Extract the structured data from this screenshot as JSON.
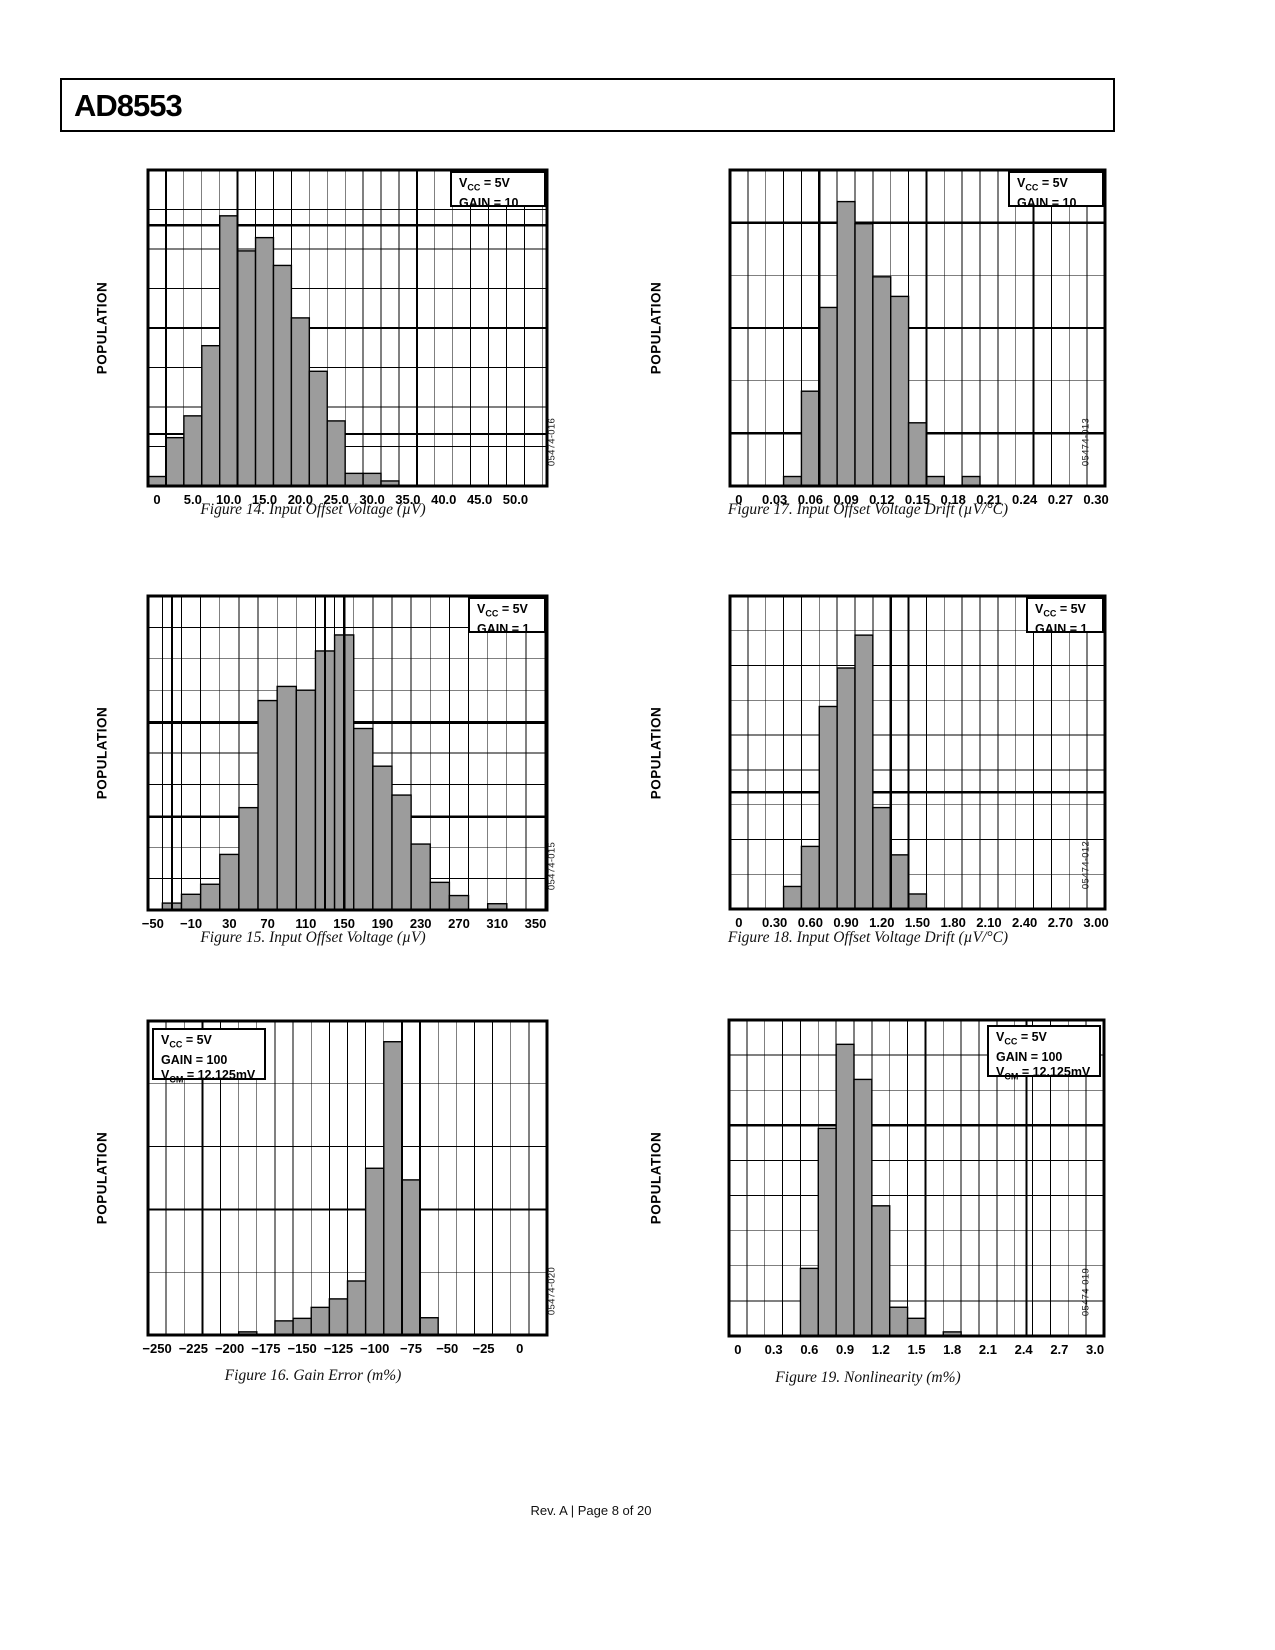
{
  "page": {
    "header_title": "AD8553",
    "footer": "Rev. A | Page 8 of 20",
    "colors": {
      "bar_fill": "#9c9c9c",
      "line": "#000000",
      "background": "#ffffff"
    }
  },
  "charts": [
    {
      "name": "figure-14",
      "type": "bar",
      "caption": "Figure 14. Input Offset Voltage (µV)",
      "code": "05474-016",
      "ylabel": "POPULATION",
      "annotation": {
        "anchor": "tr",
        "lines": [
          [
            "V",
            "CC",
            " = 5V"
          ],
          [
            "GAIN",
            "",
            " = 10"
          ]
        ]
      },
      "xmin": -1.25,
      "xmax": 54.4,
      "bin_width": 2.5,
      "ticks": [
        [
          0,
          "0"
        ],
        [
          5,
          "5.0"
        ],
        [
          10,
          "10.0"
        ],
        [
          15,
          "15.0"
        ],
        [
          20,
          "20.0"
        ],
        [
          25,
          "25.0"
        ],
        [
          30,
          "30.0"
        ],
        [
          35,
          "35.0"
        ],
        [
          40,
          "40.0"
        ],
        [
          45,
          "45.0"
        ],
        [
          50,
          "50.0"
        ]
      ],
      "grid": {
        "rows": 8,
        "col_start": -1.25,
        "col_step": 2.5,
        "heavy_v": [
          1.25,
          11.25,
          36.25
        ],
        "heavy_h": [
          0.175,
          0.5,
          0.835
        ]
      },
      "bars": [
        [
          0,
          0.03
        ],
        [
          2.5,
          0.153
        ],
        [
          5,
          0.222
        ],
        [
          7.5,
          0.444
        ],
        [
          10,
          0.855
        ],
        [
          12.5,
          0.744
        ],
        [
          15,
          0.786
        ],
        [
          17.5,
          0.698
        ],
        [
          20,
          0.532
        ],
        [
          22.5,
          0.363
        ],
        [
          25,
          0.206
        ],
        [
          27.5,
          0.04
        ],
        [
          30,
          0.04
        ],
        [
          32.5,
          0.016
        ]
      ]
    },
    {
      "name": "figure-17",
      "type": "bar",
      "caption": "Figure 17. Input Offset Voltage Drift (µV/°C)",
      "code": "05474-013",
      "ylabel": "POPULATION",
      "annotation": {
        "anchor": "tr",
        "lines": [
          [
            "V",
            "CC",
            " = 5V"
          ],
          [
            "GAIN",
            "",
            " = 10"
          ]
        ]
      },
      "xmin": -0.0075,
      "xmax": 0.3075,
      "bin_width": 0.015,
      "ticks": [
        [
          0,
          "0"
        ],
        [
          0.03,
          "0.03"
        ],
        [
          0.06,
          "0.06"
        ],
        [
          0.09,
          "0.09"
        ],
        [
          0.12,
          "0.12"
        ],
        [
          0.15,
          "0.15"
        ],
        [
          0.18,
          "0.18"
        ],
        [
          0.21,
          "0.21"
        ],
        [
          0.24,
          "0.24"
        ],
        [
          0.27,
          "0.27"
        ],
        [
          0.3,
          "0.30"
        ]
      ],
      "grid": {
        "rows": 6,
        "col_start": -0.0075,
        "col_step": 0.015,
        "heavy_v": [
          0.0675,
          0.1575,
          0.2475
        ],
        "heavy_h": [
          0.167,
          0.5,
          0.833
        ]
      },
      "bars": [
        [
          0.045,
          0.03
        ],
        [
          0.06,
          0.3
        ],
        [
          0.075,
          0.565
        ],
        [
          0.09,
          0.9
        ],
        [
          0.105,
          0.83
        ],
        [
          0.12,
          0.662
        ],
        [
          0.135,
          0.6
        ],
        [
          0.15,
          0.2
        ],
        [
          0.165,
          0.03
        ],
        [
          0.195,
          0.03
        ]
      ]
    },
    {
      "name": "figure-15",
      "type": "bar",
      "caption": "Figure 15. Input Offset Voltage (µV)",
      "code": "05474-015",
      "ylabel": "POPULATION",
      "annotation": {
        "anchor": "tr",
        "lines": [
          [
            "V",
            "CC",
            " = 5V"
          ],
          [
            "GAIN",
            "",
            " = 1"
          ]
        ]
      },
      "xmin": -55,
      "xmax": 362,
      "bin_width": 20,
      "ticks": [
        [
          -50,
          "−50"
        ],
        [
          -10,
          "−10"
        ],
        [
          30,
          "30"
        ],
        [
          70,
          "70"
        ],
        [
          110,
          "110"
        ],
        [
          150,
          "150"
        ],
        [
          190,
          "190"
        ],
        [
          230,
          "230"
        ],
        [
          270,
          "270"
        ],
        [
          310,
          "310"
        ],
        [
          350,
          "350"
        ]
      ],
      "grid": {
        "rows": 10,
        "col_start": -40,
        "col_step": 20,
        "heavy_v": [
          -30,
          130,
          150
        ],
        "heavy_h": [
          0.404,
          0.704
        ]
      },
      "bars": [
        [
          -30,
          0.022
        ],
        [
          -10,
          0.05
        ],
        [
          10,
          0.082
        ],
        [
          30,
          0.177
        ],
        [
          50,
          0.326
        ],
        [
          70,
          0.667
        ],
        [
          90,
          0.712
        ],
        [
          110,
          0.7
        ],
        [
          130,
          0.825
        ],
        [
          150,
          0.876
        ],
        [
          170,
          0.578
        ],
        [
          190,
          0.458
        ],
        [
          210,
          0.366
        ],
        [
          230,
          0.21
        ],
        [
          250,
          0.088
        ],
        [
          270,
          0.046
        ],
        [
          310,
          0.02
        ]
      ]
    },
    {
      "name": "figure-18",
      "type": "bar",
      "caption": "Figure 18. Input Offset Voltage Drift (µV/°C)",
      "code": "05474-012",
      "ylabel": "POPULATION",
      "annotation": {
        "anchor": "tr",
        "lines": [
          [
            "V",
            "CC",
            " = 5V"
          ],
          [
            "GAIN",
            "",
            " = 1"
          ]
        ]
      },
      "xmin": -0.075,
      "xmax": 3.075,
      "bin_width": 0.15,
      "ticks": [
        [
          0,
          "0"
        ],
        [
          0.3,
          "0.30"
        ],
        [
          0.6,
          "0.60"
        ],
        [
          0.9,
          "0.90"
        ],
        [
          1.2,
          "1.20"
        ],
        [
          1.5,
          "1.50"
        ],
        [
          1.8,
          "1.80"
        ],
        [
          2.1,
          "2.10"
        ],
        [
          2.4,
          "2.40"
        ],
        [
          2.7,
          "2.70"
        ],
        [
          3.0,
          "3.00"
        ]
      ],
      "grid": {
        "rows": 9,
        "col_start": -0.075,
        "col_step": 0.15,
        "heavy_v": [
          1.275,
          1.425
        ],
        "heavy_h": [
          0.627
        ]
      },
      "bars": [
        [
          0.45,
          0.072
        ],
        [
          0.6,
          0.2
        ],
        [
          0.75,
          0.647
        ],
        [
          0.9,
          0.77
        ],
        [
          1.05,
          0.875
        ],
        [
          1.2,
          0.324
        ],
        [
          1.35,
          0.173
        ],
        [
          1.5,
          0.048
        ]
      ]
    },
    {
      "name": "figure-16",
      "type": "bar",
      "caption": "Figure 16. Gain Error (m%)",
      "code": "05474-020",
      "ylabel": "POPULATION",
      "annotation": {
        "anchor": "tl",
        "lines": [
          [
            "V",
            "CC",
            " = 5V"
          ],
          [
            "GAIN",
            "",
            " = 100"
          ],
          [
            "V",
            "CM",
            " = 12.125mV"
          ]
        ]
      },
      "xmin": -256.25,
      "xmax": 18.75,
      "bin_width": 12.5,
      "ticks": [
        [
          -250,
          "−250"
        ],
        [
          -225,
          "−225"
        ],
        [
          -200,
          "−200"
        ],
        [
          -175,
          "−175"
        ],
        [
          -150,
          "−150"
        ],
        [
          -125,
          "−125"
        ],
        [
          -100,
          "−100"
        ],
        [
          -75,
          "−75"
        ],
        [
          -50,
          "−50"
        ],
        [
          -25,
          "−25"
        ],
        [
          0,
          "0"
        ]
      ],
      "grid": {
        "rows": 5,
        "col_start": -243.75,
        "col_step": 12.5,
        "heavy_v": [
          -218.75,
          -81.25,
          -68.75
        ],
        "heavy_h": [
          0.6
        ]
      },
      "bars": [
        [
          -187.5,
          0.01
        ],
        [
          -162.5,
          0.045
        ],
        [
          -150,
          0.053
        ],
        [
          -137.5,
          0.088
        ],
        [
          -125,
          0.115
        ],
        [
          -112.5,
          0.172
        ],
        [
          -100,
          0.531
        ],
        [
          -87.5,
          0.934
        ],
        [
          -75,
          0.494
        ],
        [
          -62.5,
          0.055
        ]
      ]
    },
    {
      "name": "figure-19",
      "type": "bar",
      "caption": "Figure 19. Nonlinearity (m%)",
      "code": "05474-019",
      "ylabel": "POPULATION",
      "annotation": {
        "anchor": "tr",
        "lines": [
          [
            "V",
            "CC",
            " = 5V"
          ],
          [
            "GAIN",
            "",
            " = 100"
          ],
          [
            "V",
            "CM",
            " = 12.125mV"
          ]
        ]
      },
      "xmin": -0.075,
      "xmax": 3.075,
      "bin_width": 0.15,
      "ticks": [
        [
          0,
          "0"
        ],
        [
          0.3,
          "0.3"
        ],
        [
          0.6,
          "0.6"
        ],
        [
          0.9,
          "0.9"
        ],
        [
          1.2,
          "1.2"
        ],
        [
          1.5,
          "1.5"
        ],
        [
          1.8,
          "1.8"
        ],
        [
          2.1,
          "2.1"
        ],
        [
          2.4,
          "2.4"
        ],
        [
          2.7,
          "2.7"
        ],
        [
          3.0,
          "3.0"
        ]
      ],
      "grid": {
        "rows": 9,
        "col_start": -0.075,
        "col_step": 0.15,
        "heavy_v": [
          1.575,
          2.425
        ],
        "heavy_h": [
          0.333
        ]
      },
      "bars": [
        [
          0.6,
          0.214
        ],
        [
          0.75,
          0.657
        ],
        [
          0.9,
          0.923
        ],
        [
          1.05,
          0.812
        ],
        [
          1.2,
          0.412
        ],
        [
          1.35,
          0.091
        ],
        [
          1.5,
          0.056
        ],
        [
          1.8,
          0.013
        ]
      ]
    }
  ]
}
